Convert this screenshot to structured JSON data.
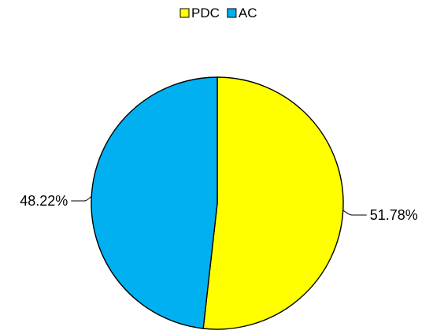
{
  "chart_data": {
    "type": "pie",
    "categories": [
      "PDC",
      "AC"
    ],
    "values": [
      51.78,
      48.22
    ],
    "value_labels": [
      "51.78%",
      "48.22%"
    ],
    "colors": [
      "#FFFF00",
      "#00B0F0"
    ],
    "legend": {
      "placement": "top",
      "entries": [
        "PDC",
        "AC"
      ]
    },
    "start_angle_deg": 0,
    "direction": "clockwise",
    "title": ""
  }
}
